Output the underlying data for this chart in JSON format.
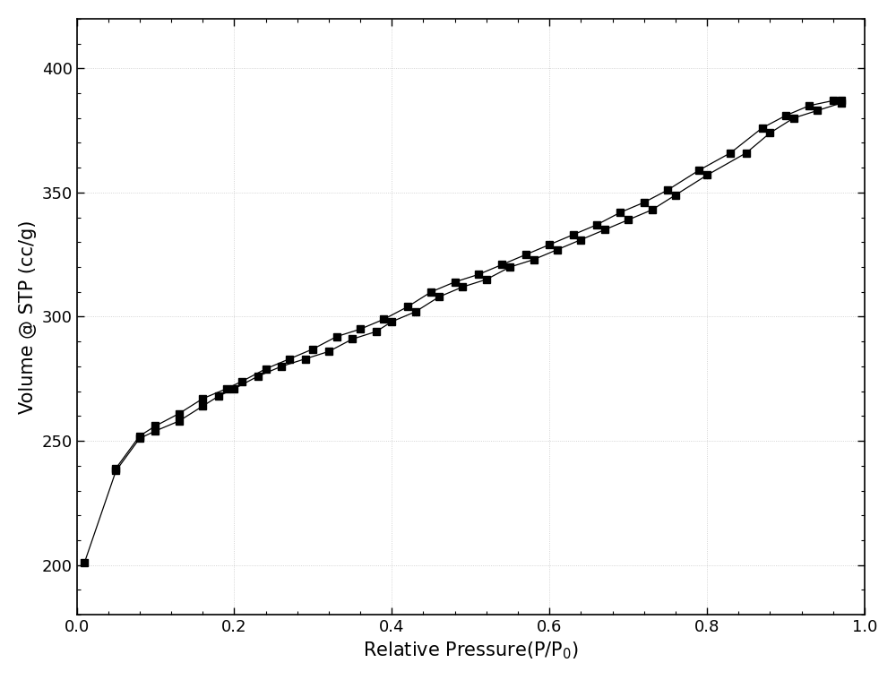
{
  "adsorption_x": [
    0.01,
    0.05,
    0.08,
    0.1,
    0.13,
    0.16,
    0.18,
    0.2,
    0.23,
    0.26,
    0.29,
    0.32,
    0.35,
    0.38,
    0.4,
    0.43,
    0.46,
    0.49,
    0.52,
    0.55,
    0.58,
    0.61,
    0.64,
    0.67,
    0.7,
    0.73,
    0.76,
    0.8,
    0.85,
    0.88,
    0.91,
    0.94,
    0.97
  ],
  "adsorption_y": [
    201,
    238,
    251,
    254,
    258,
    264,
    268,
    271,
    276,
    280,
    283,
    286,
    291,
    294,
    298,
    302,
    308,
    312,
    315,
    320,
    323,
    327,
    331,
    335,
    339,
    343,
    349,
    357,
    366,
    374,
    380,
    383,
    386
  ],
  "desorption_x": [
    0.05,
    0.08,
    0.1,
    0.13,
    0.16,
    0.19,
    0.21,
    0.24,
    0.27,
    0.3,
    0.33,
    0.36,
    0.39,
    0.42,
    0.45,
    0.48,
    0.51,
    0.54,
    0.57,
    0.6,
    0.63,
    0.66,
    0.69,
    0.72,
    0.75,
    0.79,
    0.83,
    0.87,
    0.9,
    0.93,
    0.96,
    0.97
  ],
  "desorption_y": [
    239,
    252,
    256,
    261,
    267,
    271,
    274,
    279,
    283,
    287,
    292,
    295,
    299,
    304,
    310,
    314,
    317,
    321,
    325,
    329,
    333,
    337,
    342,
    346,
    351,
    359,
    366,
    376,
    381,
    385,
    387,
    387
  ],
  "xlabel": "Relative Pressure(P/P$_0$)",
  "ylabel": "Volume @ STP (cc/g)",
  "xlim": [
    0.0,
    1.0
  ],
  "ylim": [
    180,
    420
  ],
  "xticks": [
    0.0,
    0.2,
    0.4,
    0.6,
    0.8,
    1.0
  ],
  "yticks": [
    200,
    250,
    300,
    350,
    400
  ],
  "line_color": "#000000",
  "marker_color": "#000000",
  "bg_color": "#ffffff",
  "grid_dot_color": "#b0b0b0",
  "fig_bg": "#ffffff"
}
